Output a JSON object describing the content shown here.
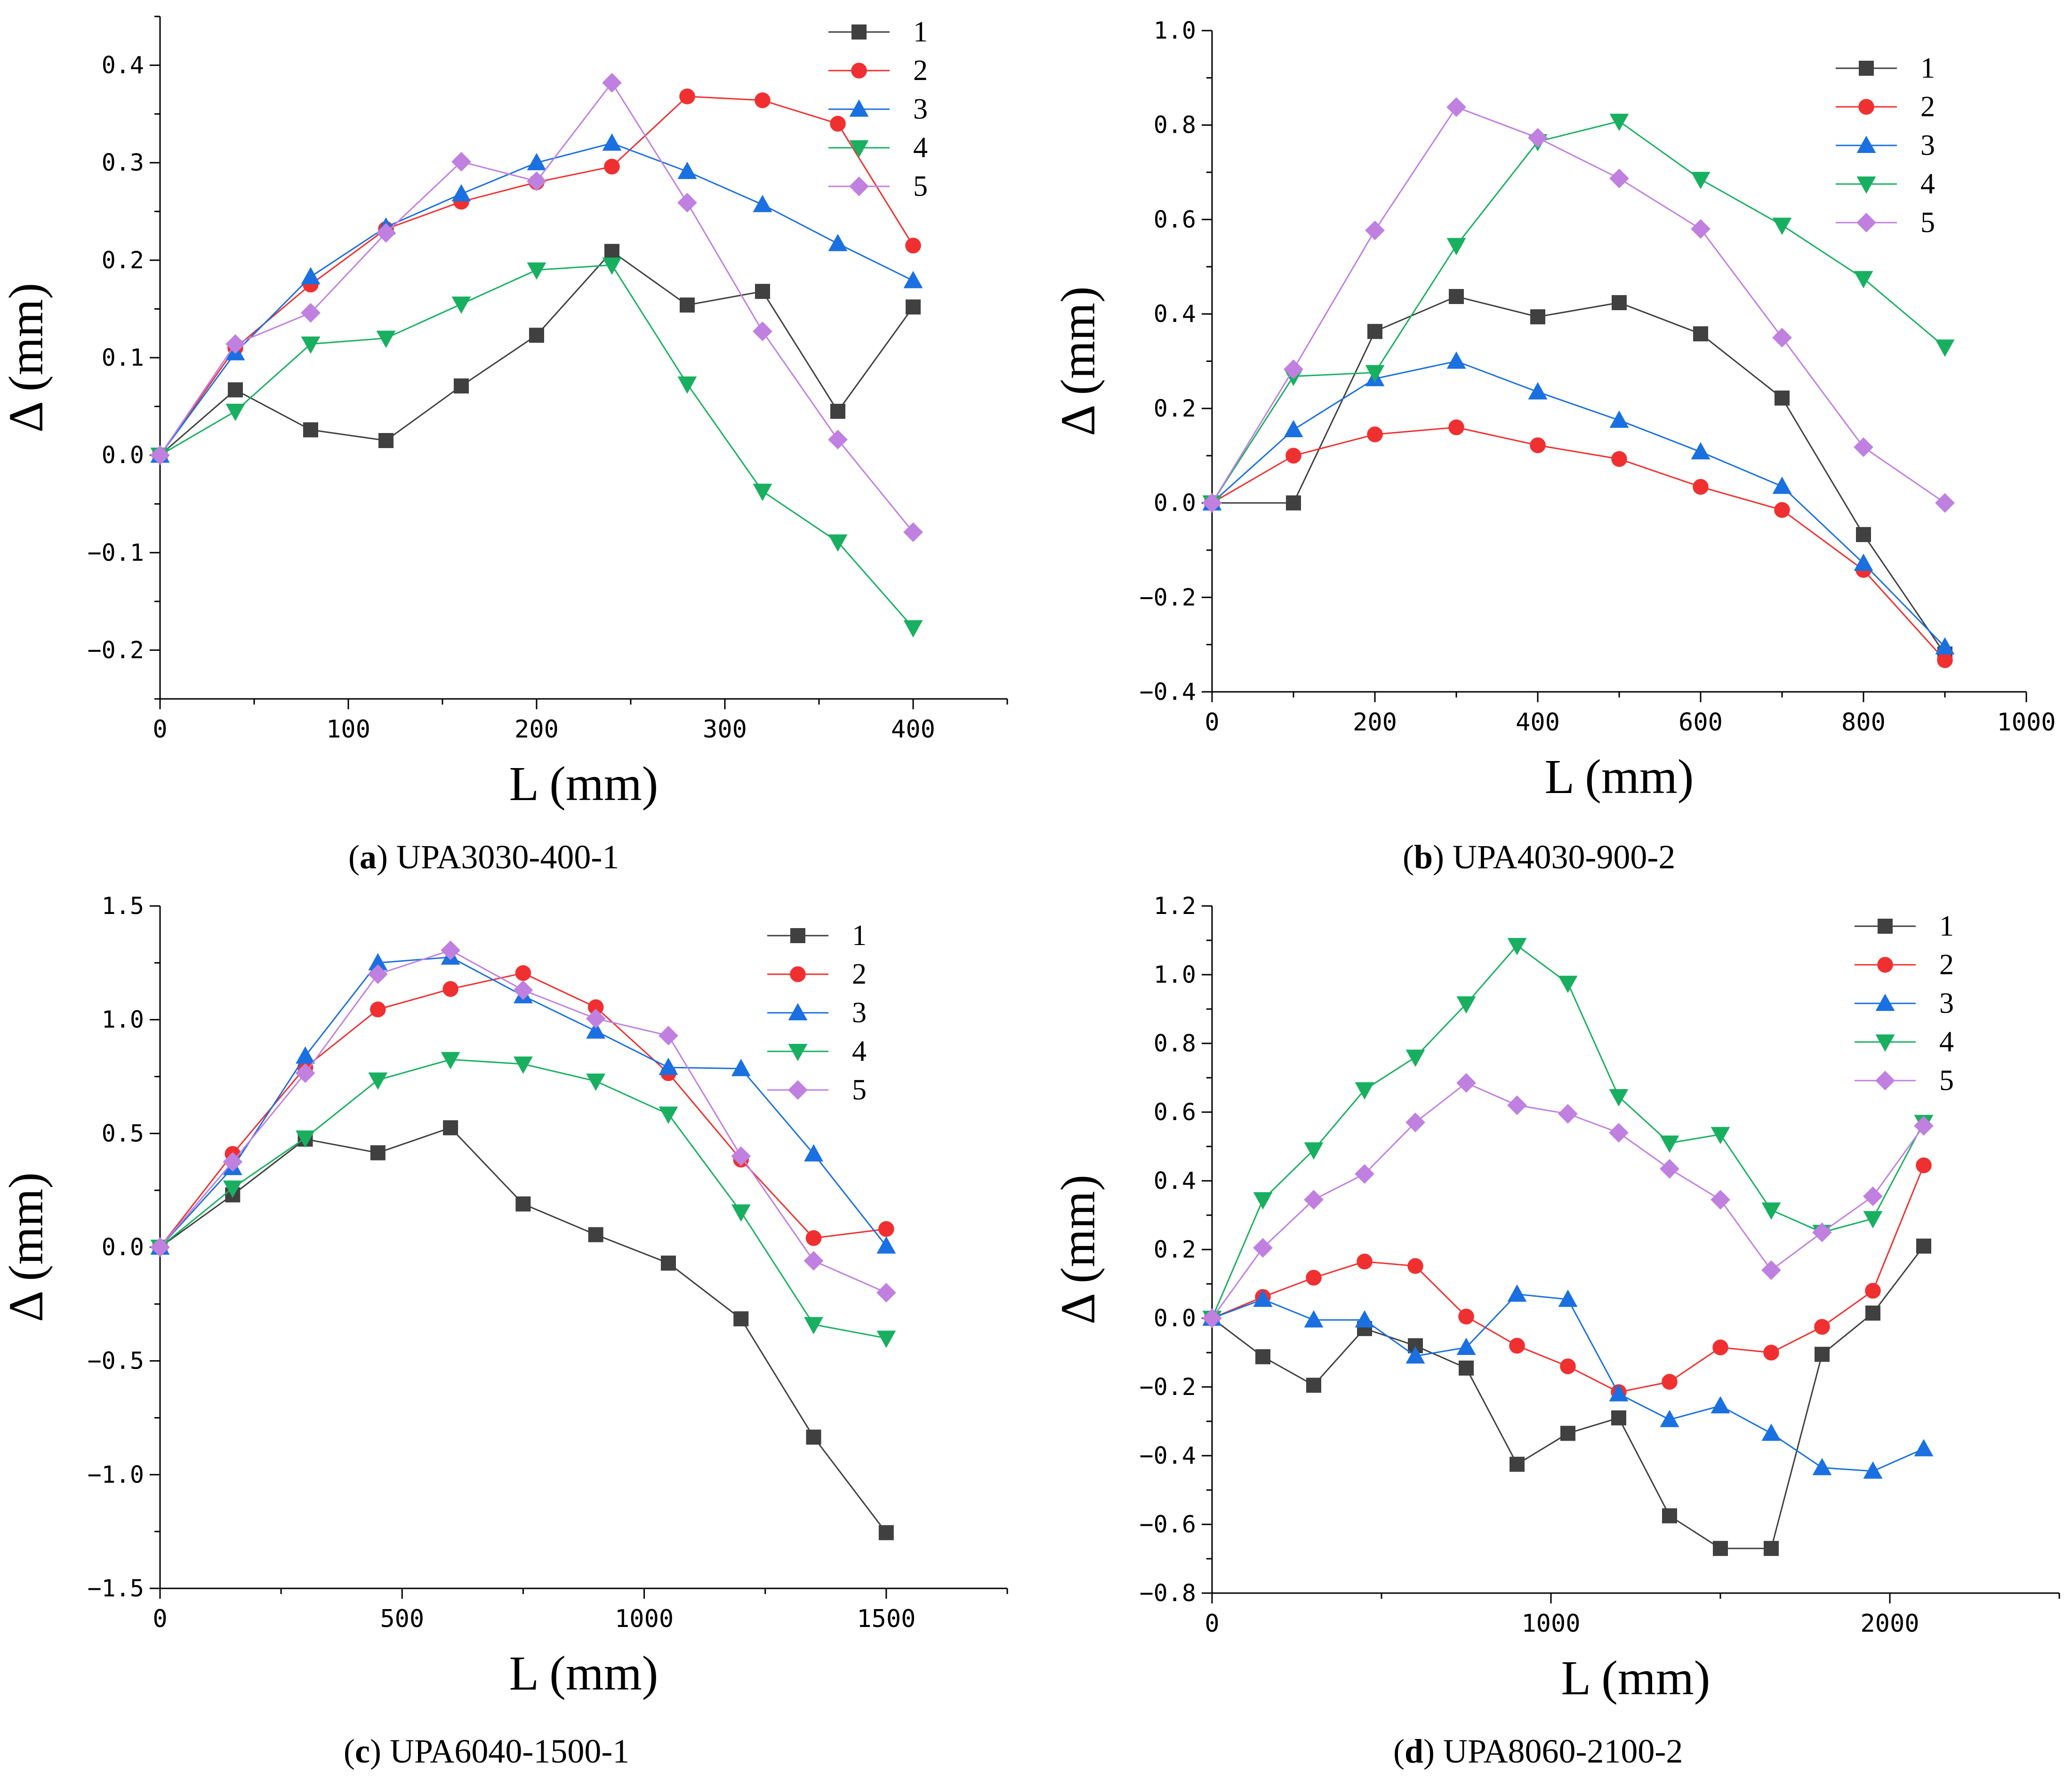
{
  "series_style": {
    "1": {
      "color": "#404040",
      "marker": "square"
    },
    "2": {
      "color": "#f03030",
      "marker": "circle"
    },
    "3": {
      "color": "#1a70e0",
      "marker": "triangle-up"
    },
    "4": {
      "color": "#18b060",
      "marker": "triangle-down"
    },
    "5": {
      "color": "#c080e0",
      "marker": "diamond"
    }
  },
  "chart_data": [
    {
      "type": "line",
      "panel_letter": "a",
      "caption": "UPA3030-400-1",
      "xlabel": "L (mm)",
      "ylabel": "Δ (mm)",
      "xlim": [
        0,
        450
      ],
      "ylim": [
        -0.25,
        0.45
      ],
      "xticks": [
        0,
        100,
        200,
        300,
        400
      ],
      "xtick_labels": [
        "0",
        "100",
        "200",
        "300",
        "400"
      ],
      "xminor": [
        50,
        150,
        250,
        350,
        450
      ],
      "yticks": [
        -0.2,
        -0.1,
        0.0,
        0.1,
        0.2,
        0.3,
        0.4
      ],
      "ytick_labels": [
        "−0.2",
        "−0.1",
        "0.0",
        "0.1",
        "0.2",
        "0.3",
        "0.4"
      ],
      "yminor": [
        -0.25,
        -0.15,
        -0.05,
        0.05,
        0.15,
        0.25,
        0.35,
        0.45
      ],
      "legend_position": "top-right",
      "x": [
        0,
        40,
        80,
        120,
        160,
        200,
        240,
        280,
        320,
        360,
        400
      ],
      "series": [
        {
          "name": "1",
          "values": [
            0,
            0.067,
            0.026,
            0.015,
            0.071,
            0.123,
            0.209,
            0.154,
            0.168,
            0.045,
            0.152
          ]
        },
        {
          "name": "2",
          "values": [
            0,
            0.11,
            0.175,
            0.232,
            0.26,
            0.28,
            0.296,
            0.368,
            0.364,
            0.34,
            0.215
          ]
        },
        {
          "name": "3",
          "values": [
            0,
            0.105,
            0.183,
            0.234,
            0.268,
            0.3,
            0.32,
            0.291,
            0.257,
            0.217,
            0.179
          ]
        },
        {
          "name": "4",
          "values": [
            0,
            0.045,
            0.114,
            0.12,
            0.155,
            0.19,
            0.195,
            0.073,
            -0.037,
            -0.089,
            -0.177
          ]
        },
        {
          "name": "5",
          "values": [
            0,
            0.114,
            0.146,
            0.228,
            0.301,
            0.281,
            0.382,
            0.259,
            0.127,
            0.016,
            -0.079
          ]
        }
      ]
    },
    {
      "type": "line",
      "panel_letter": "b",
      "caption": "UPA4030-900-2",
      "xlabel": "L (mm)",
      "ylabel": "Δ (mm)",
      "xlim": [
        0,
        1000
      ],
      "ylim": [
        -0.4,
        1.0
      ],
      "xticks": [
        0,
        200,
        400,
        600,
        800,
        1000
      ],
      "xtick_labels": [
        "0",
        "200",
        "400",
        "600",
        "800",
        "1000"
      ],
      "xminor": [
        100,
        300,
        500,
        700,
        900
      ],
      "yticks": [
        -0.4,
        -0.2,
        0.0,
        0.2,
        0.4,
        0.6,
        0.8,
        1.0
      ],
      "ytick_labels": [
        "−0.4",
        "−0.2",
        "0.0",
        "0.2",
        "0.4",
        "0.6",
        "0.8",
        "1.0"
      ],
      "yminor": [
        -0.3,
        -0.1,
        0.1,
        0.3,
        0.5,
        0.7,
        0.9
      ],
      "legend_position": "top-right",
      "x": [
        0,
        100,
        200,
        300,
        400,
        500,
        600,
        700,
        800,
        900
      ],
      "series": [
        {
          "name": "1",
          "values": [
            0,
            0.0,
            0.363,
            0.437,
            0.394,
            0.424,
            0.358,
            0.222,
            -0.067,
            -0.32
          ]
        },
        {
          "name": "2",
          "values": [
            0,
            0.1,
            0.145,
            0.16,
            0.122,
            0.093,
            0.034,
            -0.015,
            -0.142,
            -0.333
          ]
        },
        {
          "name": "3",
          "values": [
            0,
            0.155,
            0.263,
            0.3,
            0.235,
            0.175,
            0.108,
            0.035,
            -0.128,
            -0.305
          ]
        },
        {
          "name": "4",
          "values": [
            0,
            0.268,
            0.276,
            0.545,
            0.765,
            0.808,
            0.685,
            0.588,
            0.475,
            0.33
          ]
        },
        {
          "name": "5",
          "values": [
            0,
            0.283,
            0.577,
            0.838,
            0.773,
            0.687,
            0.58,
            0.35,
            0.118,
            0.0
          ]
        }
      ]
    },
    {
      "type": "line",
      "panel_letter": "c",
      "caption": "UPA6040-1500-1",
      "xlabel": "L (mm)",
      "ylabel": "Δ (mm)",
      "xlim": [
        0,
        1750
      ],
      "ylim": [
        -1.5,
        1.5
      ],
      "xticks": [
        0,
        500,
        1000,
        1500
      ],
      "xtick_labels": [
        "0",
        "500",
        "1000",
        "1500"
      ],
      "xminor": [
        250,
        750,
        1250,
        1750
      ],
      "yticks": [
        -1.5,
        -1.0,
        -0.5,
        0.0,
        0.5,
        1.0,
        1.5
      ],
      "ytick_labels": [
        "−1.5",
        "−1.0",
        "−0.5",
        "0.0",
        "0.5",
        "1.0",
        "1.5"
      ],
      "yminor": [
        -1.25,
        -0.75,
        -0.25,
        0.25,
        0.75,
        1.25
      ],
      "legend_position": "top-right",
      "x": [
        0,
        150,
        300,
        450,
        600,
        750,
        900,
        1050,
        1200,
        1350,
        1500
      ],
      "series": [
        {
          "name": "1",
          "values": [
            0,
            0.23,
            0.475,
            0.415,
            0.525,
            0.19,
            0.055,
            -0.07,
            -0.315,
            -0.835,
            -1.255
          ]
        },
        {
          "name": "2",
          "values": [
            0,
            0.41,
            0.79,
            1.045,
            1.135,
            1.205,
            1.055,
            0.765,
            0.385,
            0.04,
            0.08
          ]
        },
        {
          "name": "3",
          "values": [
            0,
            0.35,
            0.84,
            1.25,
            1.275,
            1.105,
            0.95,
            0.79,
            0.785,
            0.41,
            0.005
          ]
        },
        {
          "name": "4",
          "values": [
            0,
            0.26,
            0.48,
            0.735,
            0.825,
            0.805,
            0.73,
            0.585,
            0.155,
            -0.34,
            -0.4
          ]
        },
        {
          "name": "5",
          "values": [
            0,
            0.375,
            0.765,
            1.2,
            1.305,
            1.13,
            1.005,
            0.93,
            0.4,
            -0.06,
            -0.2
          ]
        }
      ]
    },
    {
      "type": "line",
      "panel_letter": "d",
      "caption": "UPA8060-2100-2",
      "xlabel": "L (mm)",
      "ylabel": "Δ (mm)",
      "xlim": [
        0,
        2500
      ],
      "ylim": [
        -0.8,
        1.2
      ],
      "xticks": [
        0,
        1000,
        2000
      ],
      "xtick_labels": [
        "0",
        "1000",
        "2000"
      ],
      "xminor": [
        500,
        1500,
        2500
      ],
      "yticks": [
        -0.8,
        -0.6,
        -0.4,
        -0.2,
        0.0,
        0.2,
        0.4,
        0.6,
        0.8,
        1.0,
        1.2
      ],
      "ytick_labels": [
        "−0.8",
        "−0.6",
        "−0.4",
        "−0.2",
        "0.0",
        "0.2",
        "0.4",
        "0.6",
        "0.8",
        "1.0",
        "1.2"
      ],
      "yminor": [
        -0.7,
        -0.5,
        -0.3,
        -0.1,
        0.1,
        0.3,
        0.5,
        0.7,
        0.9,
        1.1
      ],
      "legend_position": "top-right",
      "x": [
        0,
        150,
        300,
        450,
        600,
        750,
        900,
        1050,
        1200,
        1350,
        1500,
        1650,
        1800,
        1950,
        2100
      ],
      "series": [
        {
          "name": "1",
          "values": [
            0,
            -0.112,
            -0.195,
            -0.03,
            -0.08,
            -0.145,
            -0.425,
            -0.335,
            -0.29,
            -0.575,
            -0.67,
            -0.67,
            -0.105,
            0.015,
            0.21
          ]
        },
        {
          "name": "2",
          "values": [
            0,
            0.062,
            0.118,
            0.165,
            0.152,
            0.005,
            -0.08,
            -0.14,
            -0.215,
            -0.185,
            -0.085,
            -0.1,
            -0.025,
            0.08,
            0.445
          ]
        },
        {
          "name": "3",
          "values": [
            0,
            0.055,
            -0.005,
            -0.005,
            -0.11,
            -0.085,
            0.07,
            0.055,
            -0.22,
            -0.295,
            -0.255,
            -0.335,
            -0.435,
            -0.445,
            -0.38
          ]
        },
        {
          "name": "4",
          "values": [
            0,
            0.345,
            0.49,
            0.665,
            0.76,
            0.915,
            1.085,
            0.975,
            0.645,
            0.51,
            0.535,
            0.315,
            0.25,
            0.29,
            0.57
          ]
        },
        {
          "name": "5",
          "values": [
            0,
            0.205,
            0.345,
            0.42,
            0.57,
            0.685,
            0.62,
            0.595,
            0.54,
            0.435,
            0.345,
            0.14,
            0.25,
            0.355,
            0.56
          ]
        }
      ]
    }
  ]
}
